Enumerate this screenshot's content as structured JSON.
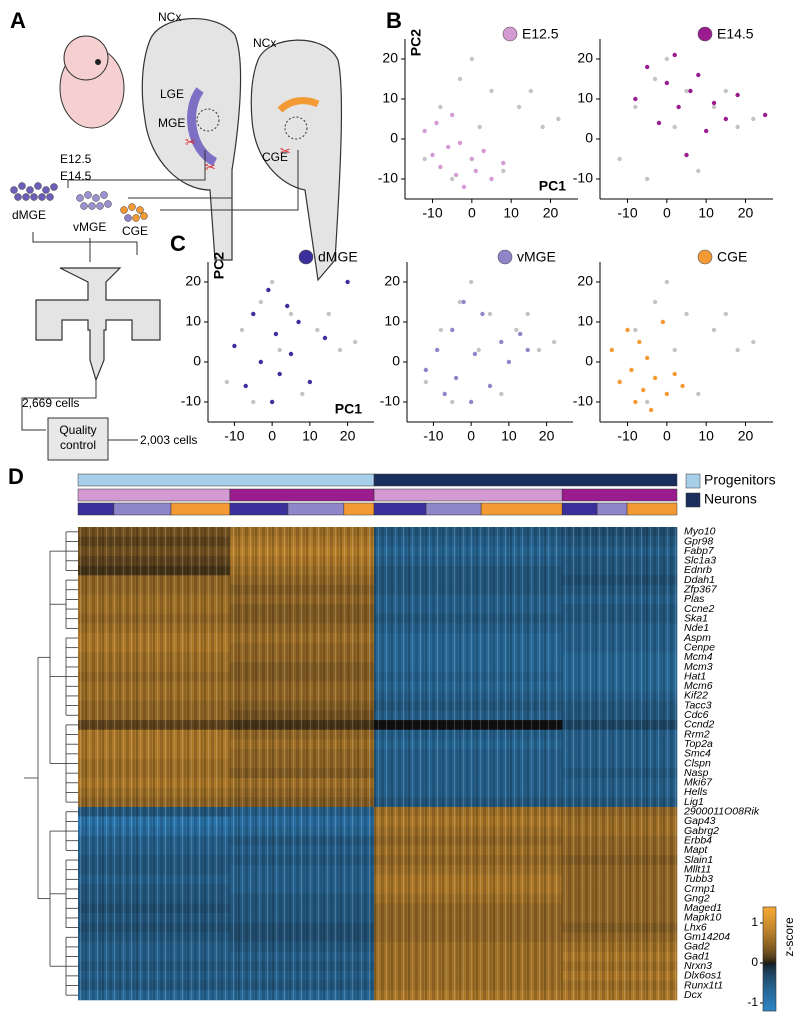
{
  "panel_labels": [
    "A",
    "B",
    "C",
    "D"
  ],
  "diagram": {
    "embryo_ages": [
      "E12.5",
      "E14.5"
    ],
    "section1": {
      "ncx": "NCx",
      "lge": "LGE",
      "mge": "MGE"
    },
    "section2": {
      "ncx": "NCx",
      "cge": "CGE"
    },
    "pools": [
      "dMGE",
      "vMGE",
      "CGE"
    ],
    "captured": "2,669 cells",
    "qc": "Quality control",
    "final": "2,003 cells"
  },
  "chart_data": [
    {
      "type": "scatter",
      "xlabel": "PC1",
      "ylabel": "PC2",
      "xlim": [
        -17,
        27
      ],
      "ylim": [
        -15,
        25
      ],
      "xticks": [
        -10,
        0,
        10,
        20
      ],
      "yticks": [
        -10,
        0,
        10,
        20
      ],
      "series": [
        {
          "color": "#c4c4c4",
          "x": [
            -12,
            -8,
            -3,
            0,
            5,
            12,
            18,
            22,
            8,
            -5,
            2,
            15
          ],
          "y": [
            -5,
            8,
            15,
            20,
            12,
            8,
            3,
            5,
            -8,
            -10,
            3,
            12
          ]
        },
        {
          "name": "E12.5",
          "color": "#d49ad4",
          "x": [
            -12,
            -10,
            -9,
            -8,
            -6,
            -5,
            -4,
            -3,
            -2,
            0,
            1,
            3,
            5,
            8
          ],
          "y": [
            2,
            -4,
            4,
            -7,
            -2,
            6,
            -9,
            -1,
            -12,
            -5,
            -8,
            -3,
            -10,
            -6
          ]
        }
      ]
    },
    {
      "type": "scatter",
      "xlim": [
        -17,
        27
      ],
      "ylim": [
        -15,
        25
      ],
      "xticks": [
        -10,
        0,
        10,
        20
      ],
      "yticks": [
        -10,
        0,
        10,
        20
      ],
      "series": [
        {
          "color": "#c4c4c4",
          "x": [
            -12,
            -8,
            -3,
            0,
            5,
            12,
            18,
            22,
            8,
            -5,
            2,
            15
          ],
          "y": [
            -5,
            8,
            15,
            20,
            12,
            8,
            3,
            5,
            -8,
            -10,
            3,
            12
          ]
        },
        {
          "name": "E14.5",
          "color": "#9a1c8e",
          "x": [
            -8,
            -5,
            -2,
            0,
            2,
            3,
            5,
            6,
            8,
            10,
            12,
            15,
            18,
            25
          ],
          "y": [
            10,
            18,
            4,
            14,
            21,
            8,
            -4,
            12,
            16,
            2,
            9,
            5,
            11,
            6
          ]
        }
      ]
    },
    {
      "type": "scatter",
      "xlabel": "PC1",
      "ylabel": "PC2",
      "xlim": [
        -17,
        27
      ],
      "ylim": [
        -15,
        25
      ],
      "xticks": [
        -10,
        0,
        10,
        20
      ],
      "yticks": [
        -10,
        0,
        10,
        20
      ],
      "series": [
        {
          "color": "#c4c4c4",
          "x": [
            -12,
            -8,
            -3,
            0,
            5,
            12,
            18,
            22,
            8,
            -5,
            2,
            15
          ],
          "y": [
            -5,
            8,
            15,
            20,
            12,
            8,
            3,
            5,
            -8,
            -10,
            3,
            12
          ]
        },
        {
          "name": "dMGE",
          "color": "#3b2f9c",
          "x": [
            -10,
            -7,
            -5,
            -3,
            -1,
            0,
            1,
            2,
            4,
            5,
            7,
            10,
            14,
            20
          ],
          "y": [
            4,
            -6,
            12,
            0,
            18,
            -10,
            7,
            -3,
            14,
            2,
            10,
            -5,
            6,
            20
          ]
        }
      ]
    },
    {
      "type": "scatter",
      "xlim": [
        -17,
        27
      ],
      "ylim": [
        -15,
        25
      ],
      "xticks": [
        -10,
        0,
        10,
        20
      ],
      "yticks": [
        -10,
        0,
        10,
        20
      ],
      "series": [
        {
          "color": "#c4c4c4",
          "x": [
            -12,
            -8,
            -3,
            0,
            5,
            12,
            18,
            22,
            8,
            -5,
            2,
            15
          ],
          "y": [
            -5,
            8,
            15,
            20,
            12,
            8,
            3,
            5,
            -8,
            -10,
            3,
            12
          ]
        },
        {
          "name": "vMGE",
          "color": "#8f85c9",
          "x": [
            -12,
            -9,
            -7,
            -5,
            -4,
            -2,
            0,
            1,
            3,
            5,
            8,
            10,
            13,
            15
          ],
          "y": [
            -2,
            3,
            -8,
            8,
            -4,
            15,
            -10,
            2,
            12,
            -6,
            5,
            0,
            7,
            3
          ]
        }
      ]
    },
    {
      "type": "scatter",
      "xlim": [
        -17,
        27
      ],
      "ylim": [
        -15,
        25
      ],
      "xticks": [
        -10,
        0,
        10,
        20
      ],
      "yticks": [
        -10,
        0,
        10,
        20
      ],
      "series": [
        {
          "color": "#c4c4c4",
          "x": [
            -12,
            -8,
            -3,
            0,
            5,
            12,
            18,
            22,
            8,
            -5,
            2,
            15
          ],
          "y": [
            -5,
            8,
            15,
            20,
            12,
            8,
            3,
            5,
            -8,
            -10,
            3,
            12
          ]
        },
        {
          "name": "CGE",
          "color": "#f49a34",
          "x": [
            -14,
            -12,
            -10,
            -9,
            -8,
            -7,
            -6,
            -5,
            -4,
            -3,
            -1,
            0,
            2,
            4
          ],
          "y": [
            3,
            -5,
            8,
            -2,
            -10,
            5,
            -7,
            1,
            -12,
            -4,
            10,
            -8,
            -3,
            -6
          ]
        }
      ]
    },
    {
      "type": "heatmap",
      "zlabel": "z-score",
      "zlim": [
        -1.2,
        1.4
      ],
      "zticks": [
        -1,
        0,
        1
      ],
      "annotation_rows": [
        [
          {
            "name": "Progenitors",
            "color": "#a8cfe8",
            "cells": 990
          },
          {
            "name": "Neurons",
            "color": "#1b2f5e",
            "cells": 1013
          }
        ],
        [
          {
            "color": "#d49ad4",
            "cells": 508
          },
          {
            "color": "#9a1c8e",
            "cells": 482
          },
          {
            "color": "#d49ad4",
            "cells": 629
          },
          {
            "color": "#9a1c8e",
            "cells": 384
          }
        ],
        [
          {
            "color": "#3b2f9c",
            "cells": 120
          },
          {
            "color": "#8f85c9",
            "cells": 191
          },
          {
            "color": "#f49a34",
            "cells": 197
          },
          {
            "color": "#3b2f9c",
            "cells": 194
          },
          {
            "color": "#8f85c9",
            "cells": 187
          },
          {
            "color": "#f49a34",
            "cells": 101
          },
          {
            "color": "#3b2f9c",
            "cells": 174
          },
          {
            "color": "#8f85c9",
            "cells": 184
          },
          {
            "color": "#f49a34",
            "cells": 271
          },
          {
            "color": "#3b2f9c",
            "cells": 117
          },
          {
            "color": "#8f85c9",
            "cells": 100
          },
          {
            "color": "#f49a34",
            "cells": 167
          }
        ]
      ],
      "genes": [
        "Myo10",
        "Gpr98",
        "Fabp7",
        "Slc1a3",
        "Ednrb",
        "Ddah1",
        "Zfp367",
        "Plas",
        "Ccne2",
        "Ska1",
        "Nde1",
        "Aspm",
        "Cenpe",
        "Mcm4",
        "Mcm3",
        "Hat1",
        "Mcm6",
        "Kif22",
        "Tacc3",
        "Cdc6",
        "Ccnd2",
        "Rrm2",
        "Top2a",
        "Smc4",
        "Clspn",
        "Nasp",
        "Mki67",
        "Hells",
        "Lig1",
        "2900011O08Rik",
        "Gap43",
        "Gabrg2",
        "Erbb4",
        "Mapt",
        "Slain1",
        "Mllt11",
        "Tubb3",
        "Crmp1",
        "Gng2",
        "Maged1",
        "Mapk10",
        "Lhx6",
        "Gm14204",
        "Gad2",
        "Gad1",
        "Nrxn3",
        "Dlx6os1",
        "Runx1t1",
        "Dcx"
      ],
      "values": [
        [
          0.3,
          0.6,
          -0.5,
          -0.4
        ],
        [
          0.2,
          0.7,
          -0.6,
          -0.5
        ],
        [
          0.3,
          0.8,
          -0.7,
          -0.6
        ],
        [
          0.2,
          0.7,
          -0.6,
          -0.5
        ],
        [
          0.1,
          0.6,
          -0.5,
          -0.5
        ],
        [
          0.5,
          0.5,
          -0.5,
          -0.4
        ],
        [
          0.5,
          0.4,
          -0.5,
          -0.5
        ],
        [
          0.6,
          0.5,
          -0.6,
          -0.6
        ],
        [
          0.6,
          0.4,
          -0.6,
          -0.5
        ],
        [
          0.5,
          0.4,
          -0.5,
          -0.5
        ],
        [
          0.6,
          0.5,
          -0.6,
          -0.6
        ],
        [
          0.7,
          0.6,
          -0.7,
          -0.6
        ],
        [
          0.7,
          0.5,
          -0.7,
          -0.6
        ],
        [
          0.6,
          0.5,
          -0.7,
          -0.7
        ],
        [
          0.6,
          0.4,
          -0.7,
          -0.7
        ],
        [
          0.5,
          0.4,
          -0.6,
          -0.7
        ],
        [
          0.6,
          0.5,
          -0.7,
          -0.7
        ],
        [
          0.6,
          0.5,
          -0.6,
          -0.6
        ],
        [
          0.5,
          0.4,
          -0.5,
          -0.5
        ],
        [
          0.5,
          0.3,
          -0.6,
          -0.5
        ],
        [
          0.2,
          0.1,
          0.0,
          -0.3
        ],
        [
          0.7,
          0.5,
          -0.6,
          -0.6
        ],
        [
          0.7,
          0.6,
          -0.7,
          -0.6
        ],
        [
          0.7,
          0.5,
          -0.6,
          -0.6
        ],
        [
          0.6,
          0.5,
          -0.6,
          -0.6
        ],
        [
          0.6,
          0.4,
          -0.6,
          -0.5
        ],
        [
          0.7,
          0.6,
          -0.6,
          -0.6
        ],
        [
          0.6,
          0.5,
          -0.6,
          -0.6
        ],
        [
          0.5,
          0.4,
          -0.5,
          -0.5
        ],
        [
          -0.5,
          -0.6,
          0.6,
          0.5
        ],
        [
          -0.9,
          -0.8,
          0.7,
          0.6
        ],
        [
          -0.8,
          -0.7,
          0.6,
          0.6
        ],
        [
          -0.6,
          -0.5,
          0.5,
          0.5
        ],
        [
          -0.6,
          -0.6,
          0.6,
          0.5
        ],
        [
          -0.5,
          -0.5,
          0.5,
          0.4
        ],
        [
          -0.5,
          -0.6,
          0.6,
          0.5
        ],
        [
          -0.6,
          -0.6,
          0.7,
          0.5
        ],
        [
          -0.5,
          -0.6,
          0.7,
          0.5
        ],
        [
          -0.5,
          -0.5,
          0.6,
          0.5
        ],
        [
          -0.4,
          -0.5,
          0.5,
          0.5
        ],
        [
          -0.5,
          -0.5,
          0.5,
          0.5
        ],
        [
          -0.4,
          -0.4,
          0.5,
          0.4
        ],
        [
          -0.5,
          -0.4,
          0.5,
          0.5
        ],
        [
          -0.6,
          -0.5,
          0.6,
          0.6
        ],
        [
          -0.6,
          -0.6,
          0.6,
          0.7
        ],
        [
          -0.5,
          -0.5,
          0.6,
          0.6
        ],
        [
          -0.6,
          -0.6,
          0.6,
          0.7
        ],
        [
          -0.5,
          -0.5,
          0.6,
          0.6
        ],
        [
          -0.7,
          -0.7,
          0.7,
          0.7
        ]
      ]
    }
  ]
}
